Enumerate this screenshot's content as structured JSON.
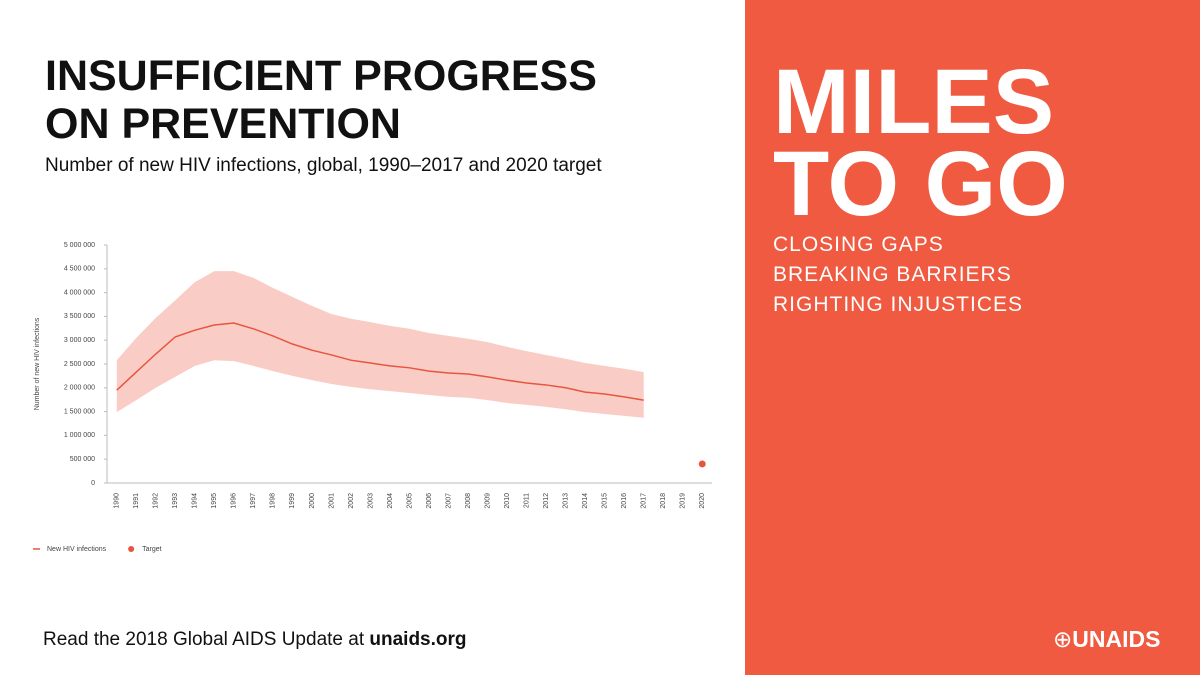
{
  "chart_data": {
    "type": "line",
    "title": "INSUFFICIENT PROGRESS ON PREVENTION",
    "subtitle": "Number of new HIV infections, global, 1990–2017 and 2020 target",
    "y_label": "Number of new HIV infections",
    "x": [
      1990,
      1991,
      1992,
      1993,
      1994,
      1995,
      1996,
      1997,
      1998,
      1999,
      2000,
      2001,
      2002,
      2003,
      2004,
      2005,
      2006,
      2007,
      2008,
      2009,
      2010,
      2011,
      2012,
      2013,
      2014,
      2015,
      2016,
      2017,
      2018,
      2019,
      2020
    ],
    "xlim": [
      1989.5,
      2020.5
    ],
    "ylim": [
      0,
      5000000
    ],
    "yticks": [
      0,
      {
        "value": 500000,
        "label": "500 000"
      },
      {
        "value": 1000000,
        "label": "1 000 000"
      },
      {
        "value": 1500000,
        "label": "1 500 000"
      },
      {
        "value": 2000000,
        "label": "2 000 000"
      },
      {
        "value": 2500000,
        "label": "2 500 000"
      },
      {
        "value": 3000000,
        "label": "3 000 000"
      },
      {
        "value": 3500000,
        "label": "3 500 000"
      },
      {
        "value": 4000000,
        "label": "4 000 000"
      },
      {
        "value": 4500000,
        "label": "4 500 000"
      },
      {
        "value": 5000000,
        "label": "5 000 000"
      }
    ],
    "grid": false,
    "legend": "bottom-left",
    "series": [
      {
        "name": "New HIV infections",
        "color": "#e8553e",
        "mark": "line",
        "band_color": "#f9cdc6",
        "values": [
          1950000,
          2330000,
          2710000,
          3070000,
          3210000,
          3320000,
          3360000,
          3240000,
          3090000,
          2920000,
          2790000,
          2690000,
          2580000,
          2520000,
          2460000,
          2420000,
          2350000,
          2310000,
          2290000,
          2230000,
          2160000,
          2100000,
          2060000,
          2000000,
          1910000,
          1870000,
          1810000,
          1740000,
          null,
          null,
          null
        ],
        "upper": [
          2580000,
          3050000,
          3470000,
          3840000,
          4220000,
          4450000,
          4450000,
          4310000,
          4100000,
          3910000,
          3720000,
          3550000,
          3450000,
          3380000,
          3300000,
          3240000,
          3150000,
          3090000,
          3030000,
          2960000,
          2860000,
          2770000,
          2690000,
          2610000,
          2520000,
          2460000,
          2400000,
          2330000,
          null,
          null,
          null
        ],
        "lower": [
          1490000,
          1740000,
          2000000,
          2230000,
          2460000,
          2580000,
          2560000,
          2460000,
          2350000,
          2250000,
          2160000,
          2080000,
          2020000,
          1970000,
          1930000,
          1890000,
          1850000,
          1810000,
          1790000,
          1740000,
          1680000,
          1640000,
          1600000,
          1550000,
          1490000,
          1450000,
          1410000,
          1370000,
          null,
          null,
          null
        ]
      },
      {
        "name": "Target",
        "color": "#e8553e",
        "mark": "point",
        "values": [
          null,
          null,
          null,
          null,
          null,
          null,
          null,
          null,
          null,
          null,
          null,
          null,
          null,
          null,
          null,
          null,
          null,
          null,
          null,
          null,
          null,
          null,
          null,
          null,
          null,
          null,
          null,
          null,
          null,
          null,
          400000
        ]
      }
    ]
  },
  "footer": {
    "text": "Read the 2018 Global AIDS Update at ",
    "link": "unaids.org"
  },
  "panel": {
    "title_lines": [
      "MILES",
      "TO GO"
    ],
    "taglines": [
      "CLOSING GAPS",
      "BREAKING BARRIERS",
      "RIGHTING INJUSTICES"
    ],
    "logo": "UNAIDS",
    "color": "#ef5a40"
  }
}
